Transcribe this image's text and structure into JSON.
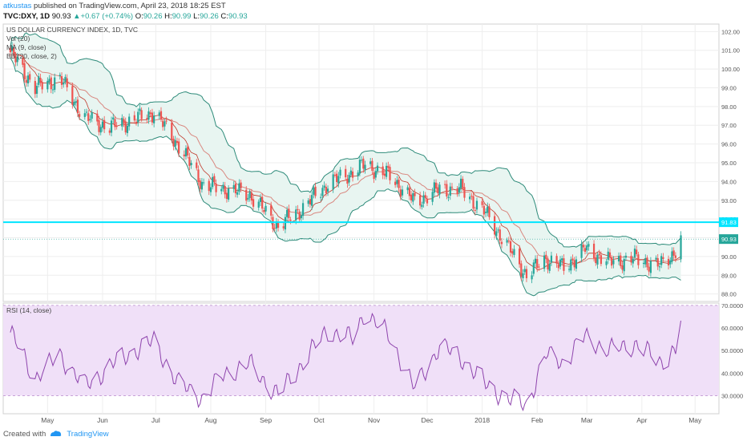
{
  "header": {
    "author": "atkustas",
    "published_text": "published on TradingView.com, April 23, 2018 18:25 EST",
    "symbol": "TVC:DXY, 1D",
    "last_price": "90.93",
    "change": "+0.67 (+0.74%)",
    "o_label": "O:",
    "o_value": "90.26",
    "h_label": "H:",
    "h_value": "90.99",
    "l_label": "L:",
    "l_value": "90.26",
    "c_label": "C:",
    "c_value": "90.93"
  },
  "legend": {
    "title": "US DOLLAR CURRENCY INDEX, 1D, TVC",
    "vol": "Vol (20)",
    "ma": "MA (9, close)",
    "bb": "BB (20, close, 2)",
    "rsi": "RSI (14, close)"
  },
  "footer": {
    "created_with": "Created with",
    "brand": "TradingView"
  },
  "colors": {
    "up": "#26a69a",
    "down": "#ef5350",
    "bollinger": "#2e8b7a",
    "band_fill": "#e8f5f1",
    "ma": "#c0392b",
    "hline": "#00e5ff",
    "rsi_line": "#8e44ad",
    "rsi_band": "#f0e0f8"
  },
  "chart_data": [
    {
      "type": "candlestick",
      "title": "US DOLLAR CURRENCY INDEX, 1D, TVC",
      "x_axis_labels": [
        "May",
        "Jun",
        "Jul",
        "Aug",
        "Sep",
        "Oct",
        "Nov",
        "Dec",
        "2018",
        "Feb",
        "Mar",
        "Apr",
        "May"
      ],
      "y_ticks": [
        "102.00",
        "101.00",
        "100.00",
        "99.00",
        "98.00",
        "97.00",
        "96.00",
        "95.00",
        "94.00",
        "93.00",
        "92.00",
        "91.00",
        "90.00",
        "89.00",
        "88.00"
      ],
      "ylim": [
        87.6,
        102.4
      ],
      "horizontal_line": {
        "value": 91.83,
        "label": "91.83"
      },
      "last_price_marker": {
        "value": 90.93,
        "label": "90.93"
      },
      "approx_close_path": [
        {
          "date": "2017-04-10",
          "close": 100.9
        },
        {
          "date": "2017-04-24",
          "close": 99.0
        },
        {
          "date": "2017-05-08",
          "close": 99.5
        },
        {
          "date": "2017-05-22",
          "close": 97.4
        },
        {
          "date": "2017-06-05",
          "close": 96.9
        },
        {
          "date": "2017-06-19",
          "close": 97.3
        },
        {
          "date": "2017-06-30",
          "close": 97.7
        },
        {
          "date": "2017-07-14",
          "close": 95.9
        },
        {
          "date": "2017-07-28",
          "close": 93.8
        },
        {
          "date": "2017-08-09",
          "close": 93.6
        },
        {
          "date": "2017-08-23",
          "close": 93.3
        },
        {
          "date": "2017-09-08",
          "close": 91.6
        },
        {
          "date": "2017-09-22",
          "close": 92.6
        },
        {
          "date": "2017-10-06",
          "close": 93.9
        },
        {
          "date": "2017-10-20",
          "close": 94.5
        },
        {
          "date": "2017-10-27",
          "close": 94.9
        },
        {
          "date": "2017-11-10",
          "close": 94.3
        },
        {
          "date": "2017-11-24",
          "close": 92.9
        },
        {
          "date": "2017-12-08",
          "close": 93.6
        },
        {
          "date": "2017-12-20",
          "close": 93.6
        },
        {
          "date": "2018-01-03",
          "close": 92.3
        },
        {
          "date": "2018-01-17",
          "close": 90.3
        },
        {
          "date": "2018-01-26",
          "close": 89.0
        },
        {
          "date": "2018-02-06",
          "close": 89.9
        },
        {
          "date": "2018-02-16",
          "close": 89.4
        },
        {
          "date": "2018-02-28",
          "close": 90.4
        },
        {
          "date": "2018-03-14",
          "close": 89.7
        },
        {
          "date": "2018-03-28",
          "close": 89.9
        },
        {
          "date": "2018-04-11",
          "close": 89.5
        },
        {
          "date": "2018-04-20",
          "close": 90.3
        },
        {
          "date": "2018-04-23",
          "close": 90.93
        }
      ]
    },
    {
      "type": "line",
      "title": "RSI (14, close)",
      "y_ticks": [
        "70.0000",
        "60.0000",
        "50.0000",
        "40.0000",
        "30.0000"
      ],
      "ylim": [
        22,
        71
      ],
      "band": [
        30,
        70
      ],
      "approx_rsi": [
        {
          "date": "2017-04-10",
          "value": 58
        },
        {
          "date": "2017-04-24",
          "value": 38
        },
        {
          "date": "2017-05-08",
          "value": 48
        },
        {
          "date": "2017-05-22",
          "value": 34
        },
        {
          "date": "2017-06-05",
          "value": 43
        },
        {
          "date": "2017-06-19",
          "value": 50
        },
        {
          "date": "2017-06-30",
          "value": 54
        },
        {
          "date": "2017-07-14",
          "value": 35
        },
        {
          "date": "2017-07-28",
          "value": 29
        },
        {
          "date": "2017-08-09",
          "value": 40
        },
        {
          "date": "2017-08-23",
          "value": 44
        },
        {
          "date": "2017-09-08",
          "value": 30
        },
        {
          "date": "2017-09-22",
          "value": 45
        },
        {
          "date": "2017-10-06",
          "value": 59
        },
        {
          "date": "2017-10-20",
          "value": 55
        },
        {
          "date": "2017-10-27",
          "value": 67
        },
        {
          "date": "2017-11-10",
          "value": 56
        },
        {
          "date": "2017-11-24",
          "value": 33
        },
        {
          "date": "2017-12-08",
          "value": 52
        },
        {
          "date": "2017-12-20",
          "value": 47
        },
        {
          "date": "2018-01-03",
          "value": 35
        },
        {
          "date": "2018-01-17",
          "value": 28
        },
        {
          "date": "2018-01-26",
          "value": 26
        },
        {
          "date": "2018-02-06",
          "value": 48
        },
        {
          "date": "2018-02-16",
          "value": 45
        },
        {
          "date": "2018-02-28",
          "value": 56
        },
        {
          "date": "2018-03-14",
          "value": 50
        },
        {
          "date": "2018-03-28",
          "value": 53
        },
        {
          "date": "2018-04-11",
          "value": 45
        },
        {
          "date": "2018-04-20",
          "value": 50
        },
        {
          "date": "2018-04-23",
          "value": 64
        }
      ]
    }
  ]
}
